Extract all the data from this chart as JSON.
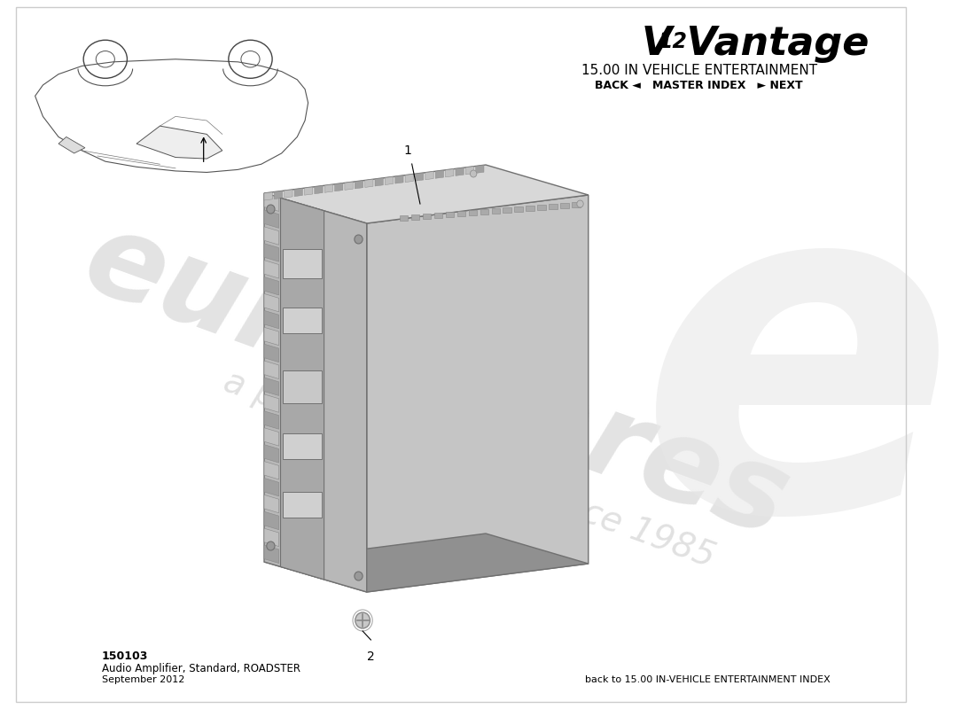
{
  "bg_color": "#ffffff",
  "section_title": "15.00 IN VEHICLE ENTERTAINMENT",
  "nav_text": "BACK ◄   MASTER INDEX   ► NEXT",
  "part_number": "150103",
  "part_name": "Audio Amplifier, Standard, ROADSTER",
  "date": "September 2012",
  "back_link": "back to 15.00 IN-VEHICLE ENTERTAINMENT INDEX",
  "watermark_line1": "eurospares",
  "watermark_line2": "a passion for parts since 1985",
  "item1_label": "1",
  "item2_label": "2",
  "amp_face_color": "#b8b8b8",
  "amp_top_color": "#d0d0d0",
  "amp_right_color": "#c8c8c8",
  "amp_dark_color": "#909090",
  "amp_edge_color": "#707070",
  "fin_light": "#c0c0c0",
  "fin_dark": "#a0a0a0"
}
